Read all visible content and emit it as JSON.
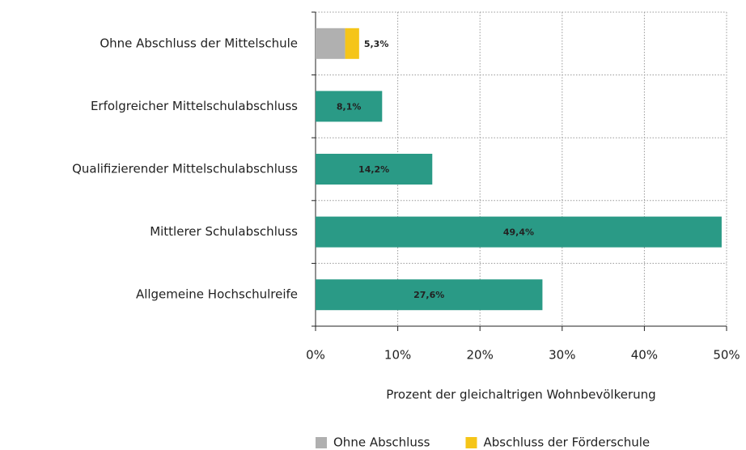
{
  "chart_data": {
    "type": "stacked-barh",
    "categories": [
      "Ohne Abschluss der Mittelschule",
      "Erfolgreicher Mittelschulabschluss",
      "Qualifizierender Mittelschulabschluss",
      "Mittlerer Schulabschluss",
      "Allgemeine Hochschulreife"
    ],
    "series": [
      {
        "name": "Ohne Abschluss",
        "color": "#b0b0b0",
        "values": [
          3.6,
          null,
          null,
          null,
          null
        ]
      },
      {
        "name": "Abschluss der Förderschule",
        "color": "#f5c518",
        "values": [
          1.7,
          null,
          null,
          null,
          null
        ]
      },
      {
        "color": "#2a9a86",
        "values": [
          null,
          8.1,
          14.2,
          49.4,
          27.6
        ],
        "value_labels": [
          null,
          "8,1%",
          "14,2%",
          "49,4%",
          "27,6%"
        ]
      }
    ],
    "annotations": [
      {
        "text": "5,3%",
        "value": 5.3,
        "category": 0
      }
    ],
    "xlabel": "Prozent der gleichaltrigen Wohnbevölkerung",
    "xlim": [
      0,
      50
    ],
    "xticks": [
      {
        "value": 0,
        "label": "0%"
      },
      {
        "value": 10,
        "label": "10%"
      },
      {
        "value": 20,
        "label": "20%"
      },
      {
        "value": 30,
        "label": "30%"
      },
      {
        "value": 40,
        "label": "40%"
      },
      {
        "value": 50,
        "label": "50%"
      }
    ],
    "grid": true
  }
}
